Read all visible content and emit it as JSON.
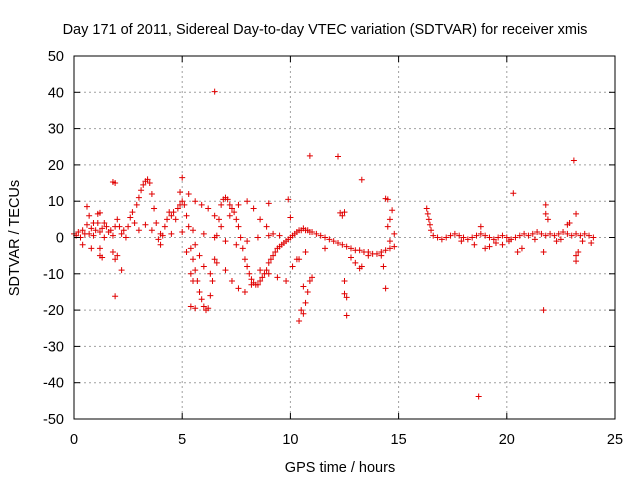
{
  "chart_data": {
    "type": "scatter",
    "title": "Day 171 of 2011, Sidereal Day-to-day VTEC variation (SDTVAR) for receiver xmis",
    "xlabel": "GPS time / hours",
    "ylabel": "SDTVAR / TECUs",
    "xlim": [
      0,
      25
    ],
    "ylim": [
      -50,
      50
    ],
    "xticks": [
      0,
      5,
      10,
      15,
      20,
      25
    ],
    "yticks": [
      -50,
      -40,
      -30,
      -20,
      -10,
      0,
      10,
      20,
      30,
      40,
      50
    ],
    "xtick_labels": [
      "0",
      "5",
      "10",
      "15",
      "20",
      "25"
    ],
    "ytick_labels": [
      "-50",
      "-40",
      "-30",
      "-20",
      "-10",
      "0",
      "10",
      "20",
      "30",
      "40",
      "50"
    ],
    "grid": true,
    "marker": "+",
    "color": "#e00000",
    "series": [
      {
        "name": "SDTVAR",
        "points": [
          [
            0.0,
            1.0
          ],
          [
            0.1,
            0.5
          ],
          [
            0.2,
            1.5
          ],
          [
            0.3,
            0.0
          ],
          [
            0.4,
            2.0
          ],
          [
            0.5,
            1.0
          ],
          [
            0.6,
            3.5
          ],
          [
            0.7,
            1.0
          ],
          [
            0.8,
            2.5
          ],
          [
            0.9,
            0.5
          ],
          [
            1.0,
            2.0
          ],
          [
            1.1,
            4.0
          ],
          [
            1.2,
            1.5
          ],
          [
            1.3,
            2.5
          ],
          [
            1.4,
            0.0
          ],
          [
            1.5,
            3.0
          ],
          [
            1.6,
            1.5
          ],
          [
            1.7,
            2.0
          ],
          [
            1.8,
            0.5
          ],
          [
            1.9,
            3.0
          ],
          [
            2.0,
            5.0
          ],
          [
            2.1,
            3.0
          ],
          [
            2.2,
            1.0
          ],
          [
            2.3,
            2.0
          ],
          [
            2.4,
            0.0
          ],
          [
            2.5,
            3.0
          ],
          [
            2.6,
            5.5
          ],
          [
            2.7,
            7.0
          ],
          [
            2.8,
            4.0
          ],
          [
            2.9,
            9.0
          ],
          [
            3.0,
            11.0
          ],
          [
            3.1,
            13.0
          ],
          [
            3.2,
            14.5
          ],
          [
            3.3,
            15.5
          ],
          [
            3.4,
            16.0
          ],
          [
            3.5,
            15.0
          ],
          [
            3.6,
            12.0
          ],
          [
            3.7,
            8.0
          ],
          [
            3.8,
            4.0
          ],
          [
            3.9,
            -0.5
          ],
          [
            4.0,
            -2.0
          ],
          [
            4.1,
            0.5
          ],
          [
            4.2,
            3.0
          ],
          [
            4.3,
            5.0
          ],
          [
            4.4,
            7.0
          ],
          [
            4.5,
            6.0
          ],
          [
            4.6,
            7.0
          ],
          [
            4.7,
            5.0
          ],
          [
            4.8,
            8.0
          ],
          [
            4.9,
            9.0
          ],
          [
            5.0,
            10.0
          ],
          [
            5.1,
            9.0
          ],
          [
            5.2,
            6.0
          ],
          [
            5.3,
            3.0
          ],
          [
            5.4,
            -3.0
          ],
          [
            5.5,
            -6.0
          ],
          [
            5.6,
            -9.0
          ],
          [
            5.7,
            -12.0
          ],
          [
            5.8,
            -15.0
          ],
          [
            5.9,
            -17.0
          ],
          [
            6.0,
            -19.0
          ],
          [
            6.1,
            -20.0
          ],
          [
            6.2,
            -19.5
          ],
          [
            6.3,
            -16.0
          ],
          [
            6.4,
            -12.0
          ],
          [
            6.5,
            -6.0
          ],
          [
            6.6,
            0.5
          ],
          [
            6.7,
            5.0
          ],
          [
            6.8,
            9.0
          ],
          [
            6.9,
            10.5
          ],
          [
            7.0,
            11.0
          ],
          [
            7.1,
            10.5
          ],
          [
            7.2,
            9.0
          ],
          [
            7.3,
            8.0
          ],
          [
            7.4,
            7.0
          ],
          [
            7.5,
            5.0
          ],
          [
            7.6,
            3.0
          ],
          [
            7.7,
            0.0
          ],
          [
            7.8,
            -3.0
          ],
          [
            7.9,
            -6.0
          ],
          [
            8.0,
            -8.0
          ],
          [
            8.1,
            -10.0
          ],
          [
            8.2,
            -11.5
          ],
          [
            8.3,
            -12.5
          ],
          [
            8.4,
            -13.0
          ],
          [
            8.5,
            -13.0
          ],
          [
            8.6,
            -12.0
          ],
          [
            8.7,
            -11.0
          ],
          [
            8.8,
            -10.0
          ],
          [
            8.9,
            -9.0
          ],
          [
            9.0,
            -7.0
          ],
          [
            9.1,
            -6.0
          ],
          [
            9.2,
            -5.0
          ],
          [
            9.3,
            -4.0
          ],
          [
            9.4,
            -3.0
          ],
          [
            9.5,
            -2.5
          ],
          [
            9.6,
            -2.0
          ],
          [
            9.7,
            -1.5
          ],
          [
            9.8,
            -1.0
          ],
          [
            9.9,
            -0.5
          ],
          [
            10.0,
            0.0
          ],
          [
            10.1,
            0.5
          ],
          [
            10.2,
            1.0
          ],
          [
            10.3,
            1.5
          ],
          [
            10.4,
            2.0
          ],
          [
            10.5,
            2.0
          ],
          [
            10.6,
            2.5
          ],
          [
            10.7,
            2.0
          ],
          [
            10.8,
            2.0
          ],
          [
            10.9,
            1.5
          ],
          [
            11.0,
            1.5
          ],
          [
            11.2,
            1.0
          ],
          [
            11.4,
            0.5
          ],
          [
            11.6,
            0.0
          ],
          [
            11.8,
            -0.5
          ],
          [
            12.0,
            -1.0
          ],
          [
            12.2,
            -1.5
          ],
          [
            12.4,
            -2.0
          ],
          [
            12.6,
            -2.5
          ],
          [
            12.8,
            -3.0
          ],
          [
            13.0,
            -3.5
          ],
          [
            13.2,
            -3.5
          ],
          [
            13.4,
            -4.0
          ],
          [
            13.6,
            -4.0
          ],
          [
            13.8,
            -4.5
          ],
          [
            14.0,
            -4.5
          ],
          [
            14.2,
            -4.0
          ],
          [
            14.4,
            -3.5
          ],
          [
            14.6,
            -3.0
          ],
          [
            14.8,
            -2.5
          ],
          [
            3.0,
            2.0
          ],
          [
            3.3,
            3.5
          ],
          [
            3.6,
            2.0
          ],
          [
            4.0,
            1.0
          ],
          [
            4.5,
            1.0
          ],
          [
            5.0,
            1.5
          ],
          [
            5.5,
            2.0
          ],
          [
            6.0,
            1.0
          ],
          [
            6.5,
            0.0
          ],
          [
            7.0,
            -1.0
          ],
          [
            7.5,
            -2.0
          ],
          [
            8.0,
            -1.0
          ],
          [
            8.5,
            0.0
          ],
          [
            9.0,
            0.5
          ],
          [
            9.5,
            0.5
          ],
          [
            5.2,
            -4.0
          ],
          [
            5.6,
            -2.0
          ],
          [
            5.8,
            -5.0
          ],
          [
            6.0,
            -8.0
          ],
          [
            6.3,
            -10.0
          ],
          [
            6.6,
            -7.0
          ],
          [
            7.0,
            -9.0
          ],
          [
            7.3,
            -12.0
          ],
          [
            7.6,
            -14.0
          ],
          [
            7.9,
            -15.0
          ],
          [
            8.2,
            -13.0
          ],
          [
            8.6,
            -9.0
          ],
          [
            9.0,
            -10.0
          ],
          [
            9.4,
            -11.0
          ],
          [
            9.8,
            -12.0
          ],
          [
            10.1,
            -8.0
          ],
          [
            10.4,
            -6.0
          ],
          [
            10.7,
            -4.0
          ],
          [
            5.3,
            12.0
          ],
          [
            5.6,
            10.0
          ],
          [
            5.9,
            9.0
          ],
          [
            6.2,
            8.0
          ],
          [
            6.5,
            6.0
          ],
          [
            6.8,
            3.0
          ],
          [
            7.2,
            6.0
          ],
          [
            7.6,
            9.0
          ],
          [
            8.0,
            10.0
          ],
          [
            8.3,
            8.0
          ],
          [
            8.6,
            5.0
          ],
          [
            8.9,
            3.0
          ],
          [
            9.2,
            1.0
          ],
          [
            6.5,
            40.2
          ],
          [
            10.9,
            22.5
          ],
          [
            12.2,
            22.3
          ],
          [
            13.3,
            15.9
          ],
          [
            1.8,
            15.3
          ],
          [
            1.9,
            15.0
          ],
          [
            5.0,
            16.5
          ],
          [
            4.9,
            12.5
          ],
          [
            9.0,
            9.4
          ],
          [
            9.9,
            10.5
          ],
          [
            10.0,
            5.5
          ],
          [
            12.3,
            6.8
          ],
          [
            12.4,
            6.0
          ],
          [
            12.5,
            7.0
          ],
          [
            14.4,
            10.7
          ],
          [
            14.5,
            10.5
          ],
          [
            14.5,
            3.0
          ],
          [
            14.6,
            5.0
          ],
          [
            14.7,
            7.5
          ],
          [
            0.6,
            8.5
          ],
          [
            0.7,
            6.0
          ],
          [
            0.9,
            4.0
          ],
          [
            1.1,
            6.5
          ],
          [
            1.2,
            6.8
          ],
          [
            1.4,
            4.0
          ],
          [
            1.2,
            -3.0
          ],
          [
            1.2,
            -5.0
          ],
          [
            1.3,
            -5.5
          ],
          [
            1.8,
            -4.0
          ],
          [
            1.9,
            -6.0
          ],
          [
            1.9,
            -16.2
          ],
          [
            2.2,
            -9.0
          ],
          [
            2.0,
            -5.0
          ],
          [
            0.4,
            -2.0
          ],
          [
            0.8,
            -3.0
          ],
          [
            5.4,
            -19.0
          ],
          [
            5.6,
            -19.5
          ],
          [
            5.4,
            -10.0
          ],
          [
            5.5,
            -12.0
          ],
          [
            10.4,
            -23.0
          ],
          [
            10.5,
            -20.0
          ],
          [
            10.6,
            -21.0
          ],
          [
            10.6,
            -13.5
          ],
          [
            10.7,
            -18.0
          ],
          [
            10.8,
            -15.0
          ],
          [
            10.9,
            -12.0
          ],
          [
            11.0,
            -11.0
          ],
          [
            12.5,
            -15.5
          ],
          [
            12.6,
            -16.5
          ],
          [
            12.6,
            -21.5
          ],
          [
            12.5,
            -12.0
          ],
          [
            13.0,
            -7.0
          ],
          [
            13.2,
            -8.5
          ],
          [
            13.3,
            -8.0
          ],
          [
            14.4,
            -14.0
          ],
          [
            14.3,
            -8.0
          ],
          [
            14.2,
            -5.0
          ],
          [
            10.3,
            -6.0
          ],
          [
            11.6,
            -3.0
          ],
          [
            12.8,
            -5.5
          ],
          [
            13.6,
            -5.0
          ],
          [
            14.8,
            1.0
          ],
          [
            14.6,
            -1.0
          ],
          [
            16.3,
            8.0
          ],
          [
            16.35,
            6.5
          ],
          [
            16.4,
            5.0
          ],
          [
            16.45,
            3.5
          ],
          [
            16.5,
            2.0
          ],
          [
            16.6,
            0.5
          ],
          [
            16.8,
            0.0
          ],
          [
            17.0,
            -0.5
          ],
          [
            17.2,
            0.0
          ],
          [
            17.4,
            0.5
          ],
          [
            17.6,
            1.0
          ],
          [
            17.8,
            0.5
          ],
          [
            18.0,
            0.0
          ],
          [
            18.2,
            -0.5
          ],
          [
            18.4,
            0.0
          ],
          [
            18.6,
            0.5
          ],
          [
            18.8,
            1.0
          ],
          [
            19.0,
            0.5
          ],
          [
            19.2,
            0.0
          ],
          [
            19.4,
            -0.5
          ],
          [
            19.6,
            0.0
          ],
          [
            19.8,
            0.5
          ],
          [
            20.0,
            0.0
          ],
          [
            20.2,
            -0.5
          ],
          [
            20.4,
            0.0
          ],
          [
            20.6,
            0.5
          ],
          [
            20.8,
            1.0
          ],
          [
            21.0,
            0.5
          ],
          [
            21.2,
            1.0
          ],
          [
            21.4,
            1.5
          ],
          [
            21.6,
            1.0
          ],
          [
            21.8,
            0.5
          ],
          [
            22.0,
            1.0
          ],
          [
            22.2,
            0.5
          ],
          [
            22.4,
            1.0
          ],
          [
            22.6,
            1.5
          ],
          [
            22.8,
            1.0
          ],
          [
            23.0,
            0.5
          ],
          [
            23.2,
            1.0
          ],
          [
            23.4,
            0.5
          ],
          [
            23.6,
            1.0
          ],
          [
            23.8,
            0.5
          ],
          [
            24.0,
            0.0
          ],
          [
            18.7,
            -43.8
          ],
          [
            20.3,
            12.2
          ],
          [
            21.7,
            -20.0
          ],
          [
            23.1,
            21.2
          ],
          [
            21.8,
            9.0
          ],
          [
            21.8,
            6.5
          ],
          [
            21.9,
            5.0
          ],
          [
            23.2,
            6.5
          ],
          [
            22.8,
            3.5
          ],
          [
            22.9,
            4.0
          ],
          [
            19.0,
            -3.0
          ],
          [
            19.2,
            -2.5
          ],
          [
            19.8,
            -2.0
          ],
          [
            20.7,
            -3.0
          ],
          [
            20.5,
            -4.0
          ],
          [
            21.7,
            -4.0
          ],
          [
            23.2,
            -6.5
          ],
          [
            23.2,
            -5.0
          ],
          [
            23.3,
            -4.0
          ],
          [
            18.8,
            3.0
          ],
          [
            17.9,
            -1.0
          ],
          [
            18.5,
            -2.0
          ],
          [
            19.5,
            -1.5
          ],
          [
            20.1,
            -1.0
          ],
          [
            21.3,
            -0.5
          ],
          [
            22.3,
            -1.0
          ],
          [
            22.5,
            -0.5
          ],
          [
            23.5,
            -1.0
          ],
          [
            23.9,
            -1.5
          ]
        ]
      }
    ]
  }
}
